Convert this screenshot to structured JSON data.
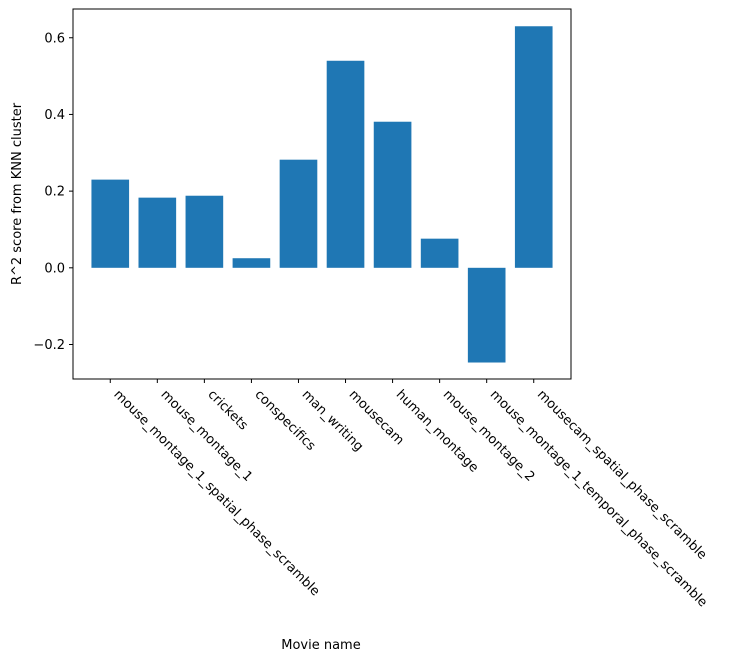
{
  "chart_data": {
    "type": "bar",
    "title": "",
    "xlabel": "Movie name",
    "ylabel": "R^2 score from KNN cluster",
    "categories": [
      "mouse_montage_1_spatial_phase_scramble",
      "mouse_montage_1",
      "crickets",
      "conspecifics",
      "man_writing",
      "mousecam",
      "human_montage",
      "mouse_montage_2",
      "mouse_montage_1_temporal_phase_scramble",
      "mousecam_spatial_phase_scramble"
    ],
    "values": [
      0.23,
      0.183,
      0.188,
      0.025,
      0.282,
      0.54,
      0.381,
      0.076,
      -0.247,
      0.63
    ],
    "ylim": [
      -0.29,
      0.675
    ],
    "yticks": [
      -0.2,
      0.0,
      0.2,
      0.4,
      0.6
    ],
    "ytick_labels": [
      "−0.2",
      "0.0",
      "0.2",
      "0.4",
      "0.6"
    ],
    "bar_color": "#1f77b4",
    "grid": false,
    "legend": "none"
  }
}
